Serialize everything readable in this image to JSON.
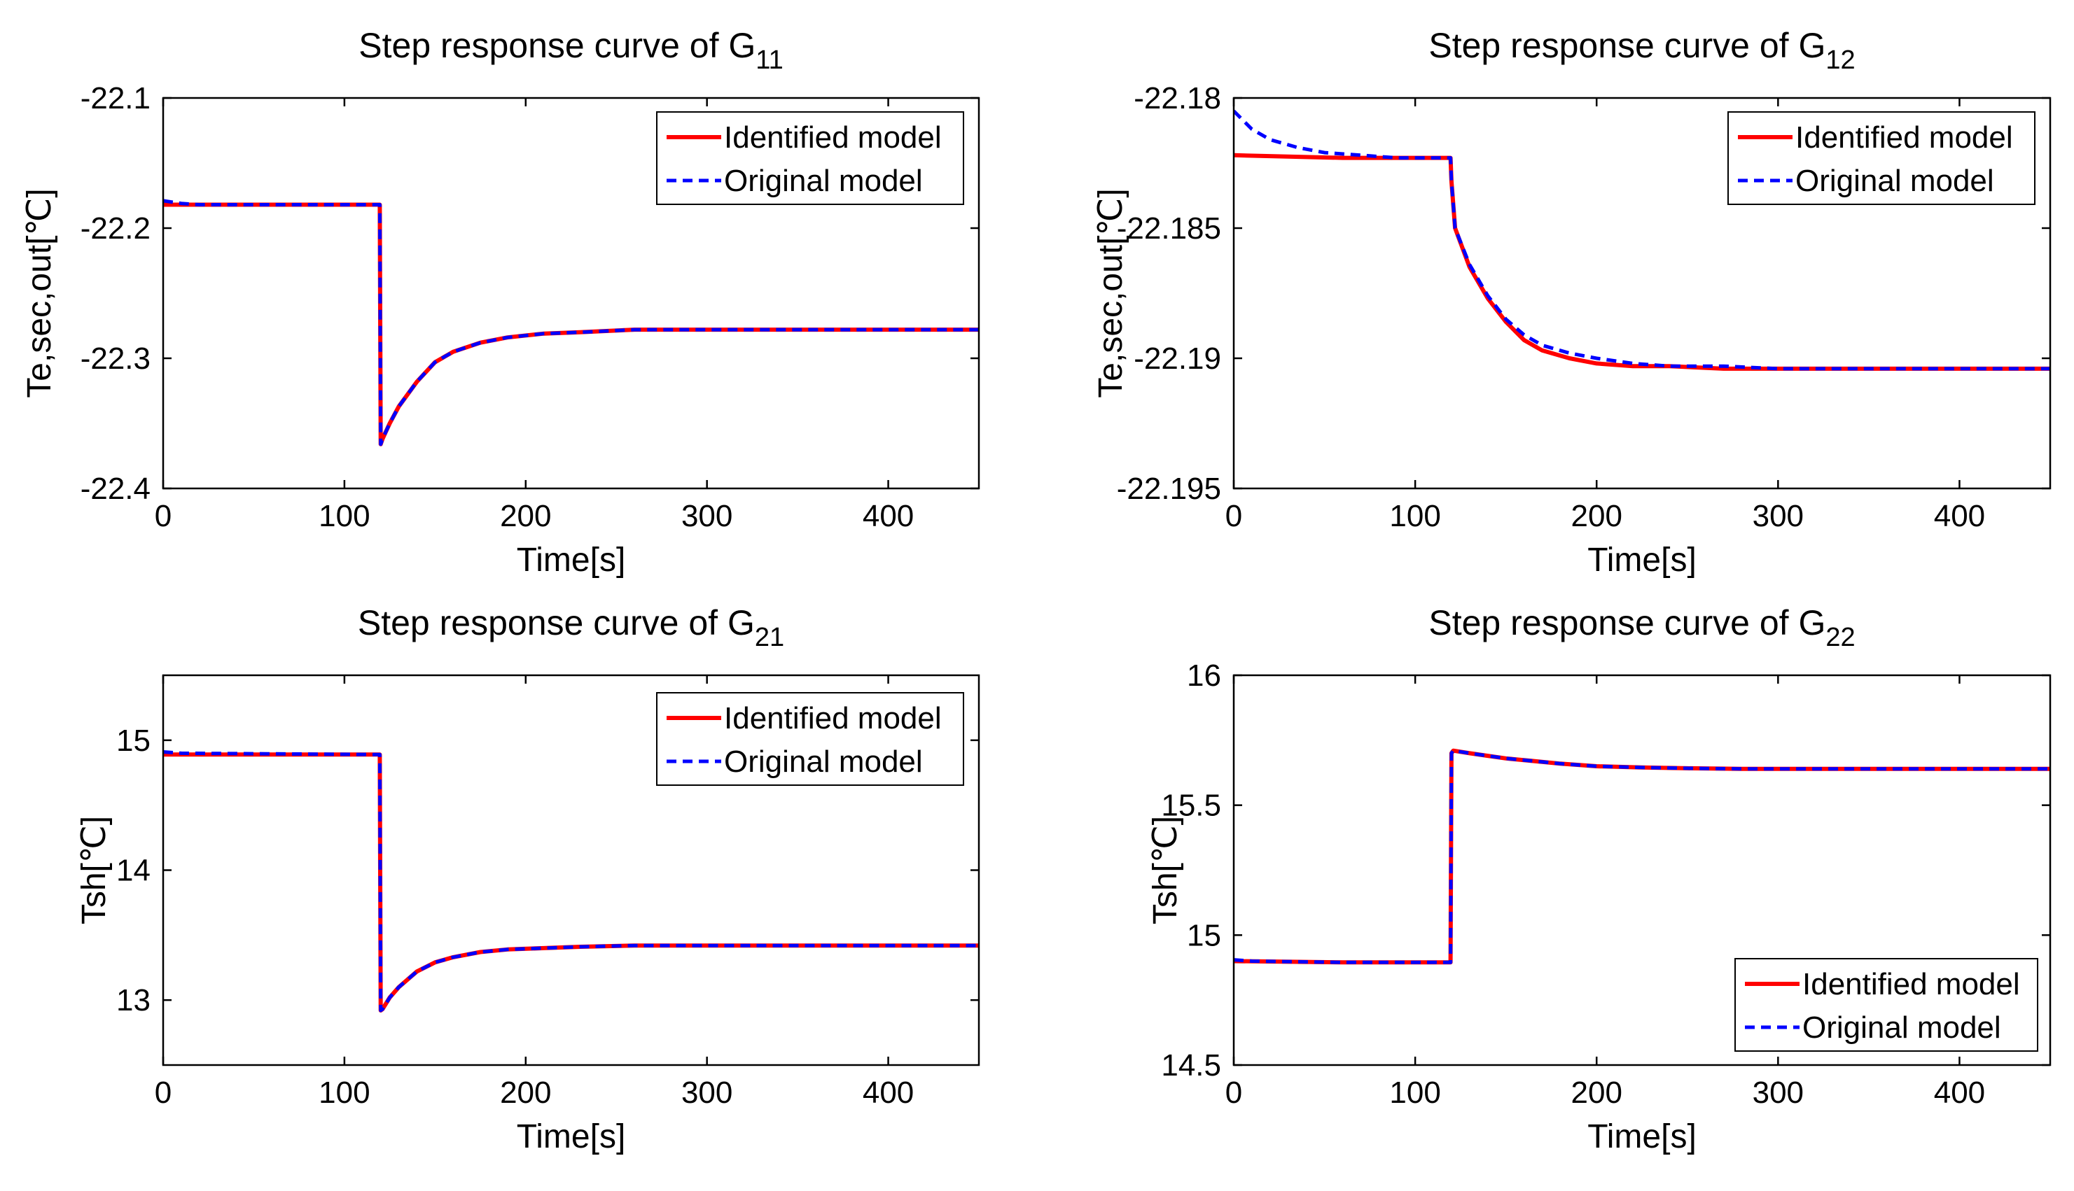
{
  "chart_data": [
    {
      "type": "line",
      "title": "Step response curve of G",
      "title_subscript": "11",
      "xlabel": "Time[s]",
      "ylabel": "Te,sec,out[℃]",
      "xlim": [
        0,
        450
      ],
      "ylim": [
        -22.4,
        -22.1
      ],
      "xticks": [
        0,
        100,
        200,
        300,
        400
      ],
      "xtick_labels": [
        "0",
        "100",
        "200",
        "300",
        "400"
      ],
      "yticks": [
        -22.4,
        -22.3,
        -22.2,
        -22.1
      ],
      "ytick_labels": [
        "-22.4",
        "-22.3",
        "-22.2",
        "-22.1"
      ],
      "legend_position": "top-right",
      "series": [
        {
          "name": "Identified model",
          "color": "#ff0000",
          "style": "solid",
          "x": [
            0,
            119.5,
            120,
            121,
            125,
            130,
            140,
            150,
            160,
            175,
            190,
            210,
            230,
            260,
            300,
            350,
            400,
            450
          ],
          "y": [
            -22.182,
            -22.182,
            -22.366,
            -22.362,
            -22.35,
            -22.337,
            -22.318,
            -22.303,
            -22.295,
            -22.288,
            -22.284,
            -22.281,
            -22.28,
            -22.278,
            -22.278,
            -22.278,
            -22.278,
            -22.278
          ]
        },
        {
          "name": "Original model",
          "color": "#0000ff",
          "style": "dashed",
          "x": [
            0,
            10,
            20,
            40,
            119.5,
            120,
            121,
            125,
            130,
            140,
            150,
            160,
            175,
            190,
            210,
            230,
            260,
            300,
            350,
            400,
            450
          ],
          "y": [
            -22.179,
            -22.181,
            -22.182,
            -22.182,
            -22.182,
            -22.366,
            -22.362,
            -22.35,
            -22.337,
            -22.318,
            -22.303,
            -22.295,
            -22.288,
            -22.284,
            -22.281,
            -22.28,
            -22.278,
            -22.278,
            -22.278,
            -22.278,
            -22.278
          ]
        }
      ]
    },
    {
      "type": "line",
      "title": "Step response curve of G",
      "title_subscript": "12",
      "xlabel": "Time[s]",
      "ylabel": "Te,sec,out[℃]",
      "xlim": [
        0,
        450
      ],
      "ylim": [
        -22.195,
        -22.18
      ],
      "xticks": [
        0,
        100,
        200,
        300,
        400
      ],
      "xtick_labels": [
        "0",
        "100",
        "200",
        "300",
        "400"
      ],
      "yticks": [
        -22.195,
        -22.19,
        -22.185,
        -22.18
      ],
      "ytick_labels": [
        "-22.195",
        "-22.19",
        "-22.185",
        "-22.18"
      ],
      "legend_position": "top-right",
      "series": [
        {
          "name": "Identified model",
          "color": "#ff0000",
          "style": "solid",
          "x": [
            0,
            60,
            119.5,
            120,
            122,
            130,
            140,
            150,
            160,
            170,
            185,
            200,
            220,
            240,
            270,
            300,
            350,
            400,
            450
          ],
          "y": [
            -22.1822,
            -22.1823,
            -22.1823,
            -22.1832,
            -22.185,
            -22.1865,
            -22.1877,
            -22.1886,
            -22.1893,
            -22.1897,
            -22.19,
            -22.1902,
            -22.1903,
            -22.1903,
            -22.1904,
            -22.1904,
            -22.1904,
            -22.1904,
            -22.1904
          ]
        },
        {
          "name": "Original model",
          "color": "#0000ff",
          "style": "dashed",
          "x": [
            0,
            10,
            20,
            35,
            50,
            70,
            90,
            119.5,
            120,
            122,
            130,
            140,
            150,
            160,
            170,
            185,
            200,
            220,
            240,
            270,
            300,
            350,
            400,
            450
          ],
          "y": [
            -22.1805,
            -22.1812,
            -22.1816,
            -22.1819,
            -22.1821,
            -22.1822,
            -22.1823,
            -22.1823,
            -22.1832,
            -22.185,
            -22.1864,
            -22.1876,
            -22.1885,
            -22.1891,
            -22.1895,
            -22.1898,
            -22.19,
            -22.1902,
            -22.1903,
            -22.1903,
            -22.1904,
            -22.1904,
            -22.1904,
            -22.1904
          ]
        }
      ]
    },
    {
      "type": "line",
      "title": "Step response curve of G",
      "title_subscript": "21",
      "xlabel": "Time[s]",
      "ylabel": "Tsh[℃]",
      "xlim": [
        0,
        450
      ],
      "ylim": [
        12.5,
        15.5
      ],
      "xticks": [
        0,
        100,
        200,
        300,
        400
      ],
      "xtick_labels": [
        "0",
        "100",
        "200",
        "300",
        "400"
      ],
      "yticks": [
        13,
        14,
        15
      ],
      "ytick_labels": [
        "13",
        "14",
        "15"
      ],
      "legend_position": "top-right",
      "series": [
        {
          "name": "Identified model",
          "color": "#ff0000",
          "style": "solid",
          "x": [
            0,
            119.5,
            120,
            121,
            125,
            130,
            140,
            150,
            160,
            175,
            190,
            210,
            230,
            260,
            300,
            350,
            400,
            450
          ],
          "y": [
            14.89,
            14.89,
            12.92,
            12.93,
            13.02,
            13.1,
            13.22,
            13.29,
            13.33,
            13.37,
            13.39,
            13.4,
            13.41,
            13.42,
            13.42,
            13.42,
            13.42,
            13.42
          ]
        },
        {
          "name": "Original model",
          "color": "#0000ff",
          "style": "dashed",
          "x": [
            0,
            10,
            119.5,
            120,
            121,
            125,
            130,
            140,
            150,
            160,
            175,
            190,
            210,
            230,
            260,
            300,
            350,
            400,
            450
          ],
          "y": [
            14.91,
            14.9,
            14.89,
            12.92,
            12.93,
            13.02,
            13.1,
            13.22,
            13.29,
            13.33,
            13.37,
            13.39,
            13.4,
            13.41,
            13.42,
            13.42,
            13.42,
            13.42,
            13.42
          ]
        }
      ]
    },
    {
      "type": "line",
      "title": "Step response curve of G",
      "title_subscript": "22",
      "xlabel": "Time[s]",
      "ylabel": "Tsh[℃]",
      "xlim": [
        0,
        450
      ],
      "ylim": [
        14.5,
        16
      ],
      "xticks": [
        0,
        100,
        200,
        300,
        400
      ],
      "xtick_labels": [
        "0",
        "100",
        "200",
        "300",
        "400"
      ],
      "yticks": [
        14.5,
        15,
        15.5,
        16
      ],
      "ytick_labels": [
        "14.5",
        "15",
        "15.5",
        "16"
      ],
      "legend_position": "bottom-right",
      "series": [
        {
          "name": "Identified model",
          "color": "#ff0000",
          "style": "solid",
          "x": [
            0,
            60,
            119.5,
            120,
            121,
            130,
            140,
            150,
            165,
            180,
            200,
            225,
            250,
            280,
            320,
            370,
            420,
            450
          ],
          "y": [
            14.9,
            14.895,
            14.895,
            15.7,
            15.71,
            15.7,
            15.69,
            15.68,
            15.67,
            15.66,
            15.65,
            15.645,
            15.642,
            15.64,
            15.64,
            15.64,
            15.64,
            15.64
          ]
        },
        {
          "name": "Original model",
          "color": "#0000ff",
          "style": "dashed",
          "x": [
            0,
            10,
            60,
            119.5,
            120,
            121,
            130,
            140,
            150,
            165,
            180,
            200,
            225,
            250,
            280,
            320,
            370,
            420,
            450
          ],
          "y": [
            14.905,
            14.9,
            14.895,
            14.895,
            15.7,
            15.71,
            15.7,
            15.69,
            15.68,
            15.67,
            15.66,
            15.65,
            15.645,
            15.642,
            15.64,
            15.64,
            15.64,
            15.64,
            15.64
          ]
        }
      ]
    }
  ]
}
